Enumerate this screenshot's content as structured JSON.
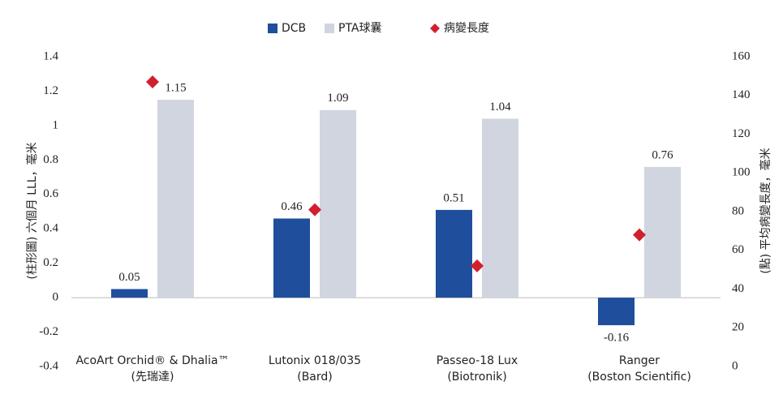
{
  "chart_data": {
    "type": "bar",
    "categories": [
      [
        "AcoArt Orchid® & Dhalia™",
        "(先瑞達)"
      ],
      [
        "Lutonix 018/035",
        "(Bard)"
      ],
      [
        "Passeo-18 Lux",
        "(Biotronik)"
      ],
      [
        "Ranger",
        "(Boston Scientific)"
      ]
    ],
    "series": [
      {
        "name": "DCB",
        "color": "#1f4e9c",
        "values": [
          0.05,
          0.46,
          0.51,
          -0.16
        ]
      },
      {
        "name": "PTA球囊",
        "color": "#d0d5df",
        "values": [
          1.15,
          1.09,
          1.04,
          0.76
        ]
      },
      {
        "name": "病變長度",
        "color": "#d0202e",
        "type": "scatter",
        "axis": "y2",
        "values": [
          147,
          81,
          52,
          68
        ]
      }
    ],
    "ylabel": "(柱形圖) 六個月 LLL，毫米",
    "y2label": "(點) 平均病變長度，毫米",
    "ylim": [
      -0.4,
      1.4
    ],
    "yticks": [
      -0.4,
      -0.2,
      0,
      0.2,
      0.4,
      0.6,
      0.8,
      1,
      1.2,
      1.4
    ],
    "y2lim": [
      0,
      160
    ],
    "y2ticks": [
      0,
      20,
      40,
      60,
      80,
      100,
      120,
      140,
      160
    ],
    "grid": false,
    "legend": "top"
  }
}
